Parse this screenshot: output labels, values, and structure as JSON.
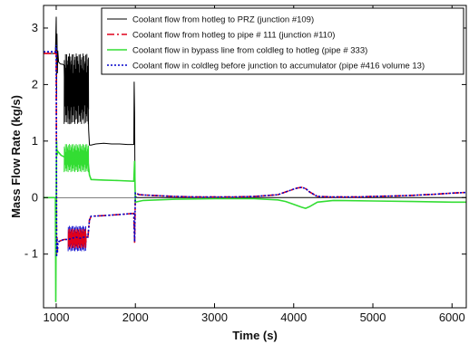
{
  "chart_data": {
    "type": "line",
    "title": "",
    "xlabel": "Time (s)",
    "ylabel": "Mass Flow Rate (kg/s)",
    "xlim": [
      840,
      6180
    ],
    "ylim": [
      -1.95,
      3.4
    ],
    "xticks": [
      1000,
      2000,
      3000,
      4000,
      5000,
      6000
    ],
    "xtick_labels": [
      "1000",
      "2000",
      "3000",
      "4000",
      "5000",
      "6000"
    ],
    "yticks": [
      3,
      2,
      1,
      0,
      -1
    ],
    "ytick_labels": [
      "3",
      "2",
      "1",
      "0",
      "- 1"
    ],
    "grid": false,
    "legend_position": "top-right",
    "series": [
      {
        "name": "Coolant flow from hotleg to PRZ (junction #109)",
        "color": "#000000",
        "dash": "solid",
        "x": [
          840,
          990,
          1000,
          1005,
          1010,
          1015,
          1020,
          1030,
          1040,
          1060,
          1080,
          1100,
          1110,
          1120,
          1130,
          1140,
          1150,
          1160,
          1170,
          1180,
          1190,
          1200,
          1210,
          1220,
          1230,
          1240,
          1250,
          1260,
          1270,
          1280,
          1290,
          1300,
          1310,
          1320,
          1330,
          1340,
          1350,
          1360,
          1370,
          1380,
          1390,
          1400,
          1410,
          1420,
          1430,
          1440,
          1500,
          1600,
          1700,
          1800,
          1900,
          1980,
          1985,
          1990,
          1995,
          2000,
          2020,
          2100,
          6180
        ],
        "y": [
          2.55,
          2.55,
          3.2,
          1.8,
          2.9,
          2.2,
          2.6,
          2.4,
          2.38,
          2.36,
          2.36,
          2.34,
          1.7,
          2.3,
          1.5,
          2.2,
          1.4,
          2.5,
          1.3,
          2.4,
          1.6,
          2.1,
          1.5,
          2.0,
          1.7,
          1.9,
          1.8,
          2.5,
          1.6,
          2.0,
          1.7,
          2.1,
          1.5,
          2.0,
          1.8,
          1.9,
          1.7,
          1.9,
          1.8,
          1.85,
          1.82,
          1.85,
          1.2,
          0.93,
          0.93,
          0.93,
          0.95,
          0.96,
          0.95,
          0.95,
          0.94,
          0.94,
          2.05,
          1.5,
          0.2,
          0.02,
          0.0,
          0.0,
          0.0
        ]
      },
      {
        "name": "Coolant flow from hotleg to pipe # 111 (junction #110)",
        "color": "#e0001b",
        "dash": "dashdot",
        "x": [
          840,
          990,
          1000,
          1005,
          1010,
          1015,
          1020,
          1030,
          1060,
          1100,
          1150,
          1200,
          1250,
          1300,
          1350,
          1400,
          1420,
          1440,
          1600,
          1800,
          1980,
          1990,
          2000,
          2050,
          2200,
          2500,
          2800,
          3000,
          3200,
          3500,
          3800,
          3900,
          4000,
          4050,
          4100,
          4150,
          4200,
          4300,
          4500,
          4800,
          5000,
          5300,
          5500,
          5800,
          6000,
          6180
        ],
        "y": [
          2.55,
          2.55,
          2.6,
          -1.0,
          -0.7,
          -0.95,
          -0.8,
          -0.78,
          -0.76,
          -0.74,
          -0.74,
          -0.72,
          -0.7,
          -0.72,
          -0.7,
          -0.7,
          -0.4,
          -0.33,
          -0.32,
          -0.3,
          -0.28,
          -0.8,
          0.08,
          0.05,
          0.04,
          0.02,
          0.01,
          0.01,
          0.01,
          0.02,
          0.05,
          0.1,
          0.15,
          0.17,
          0.18,
          0.16,
          0.1,
          0.02,
          0.01,
          0.01,
          0.02,
          0.03,
          0.04,
          0.06,
          0.08,
          0.09
        ]
      },
      {
        "name": "Coolant flow in bypass line from coldleg to hotleg (pipe # 333)",
        "color": "#33dd33",
        "dash": "solid",
        "x": [
          840,
          990,
          995,
          1000,
          1005,
          1010,
          1020,
          1030,
          1060,
          1100,
          1150,
          1200,
          1250,
          1300,
          1350,
          1400,
          1420,
          1440,
          1600,
          1800,
          1980,
          1990,
          2000,
          2100,
          2500,
          3000,
          3500,
          3800,
          3900,
          4000,
          4100,
          4150,
          4200,
          4300,
          4500,
          5000,
          5500,
          6000,
          6180
        ],
        "y": [
          0.0,
          0.0,
          -1.85,
          0.0,
          1.0,
          0.75,
          0.82,
          0.8,
          0.75,
          0.72,
          0.7,
          0.7,
          0.68,
          0.7,
          0.68,
          0.66,
          0.4,
          0.32,
          0.31,
          0.3,
          0.29,
          0.65,
          -0.08,
          -0.05,
          -0.03,
          -0.02,
          -0.02,
          -0.04,
          -0.07,
          -0.12,
          -0.17,
          -0.19,
          -0.16,
          -0.08,
          -0.05,
          -0.06,
          -0.07,
          -0.08,
          -0.08
        ]
      },
      {
        "name": "Coolant flow in coldleg before junction to accumulator (pipe #416 volume 13)",
        "color": "#0000cc",
        "dash": "dotted",
        "x": [
          840,
          990,
          1000,
          1005,
          1010,
          1015,
          1020,
          1030,
          1060,
          1100,
          1150,
          1200,
          1250,
          1300,
          1350,
          1400,
          1420,
          1440,
          1600,
          1800,
          1980,
          1990,
          2000,
          2050,
          2200,
          2500,
          2800,
          3000,
          3200,
          3500,
          3800,
          3900,
          4000,
          4050,
          4100,
          4150,
          4200,
          4300,
          4500,
          4800,
          5000,
          5300,
          5500,
          5800,
          6000,
          6180
        ],
        "y": [
          2.58,
          2.58,
          2.7,
          -1.05,
          -0.72,
          -0.98,
          -0.82,
          -0.78,
          -0.76,
          -0.74,
          -0.74,
          -0.72,
          -0.7,
          -0.72,
          -0.7,
          -0.7,
          -0.4,
          -0.33,
          -0.32,
          -0.3,
          -0.28,
          -0.78,
          0.08,
          0.05,
          0.04,
          0.02,
          0.01,
          0.01,
          0.01,
          0.02,
          0.05,
          0.1,
          0.15,
          0.17,
          0.18,
          0.16,
          0.1,
          0.02,
          0.01,
          0.01,
          0.02,
          0.03,
          0.04,
          0.06,
          0.08,
          0.09
        ]
      }
    ],
    "oscillation_bands": [
      {
        "series_index": 0,
        "x_start": 1100,
        "x_end": 1410,
        "y_low": 1.3,
        "y_high": 2.55
      },
      {
        "series_index": 2,
        "x_start": 1100,
        "x_end": 1410,
        "y_low": 0.45,
        "y_high": 0.95
      },
      {
        "series_index": 3,
        "x_start": 1150,
        "x_end": 1380,
        "y_low": -0.95,
        "y_high": -0.5
      },
      {
        "series_index": 1,
        "x_start": 1150,
        "x_end": 1380,
        "y_low": -0.9,
        "y_high": -0.55
      }
    ]
  }
}
